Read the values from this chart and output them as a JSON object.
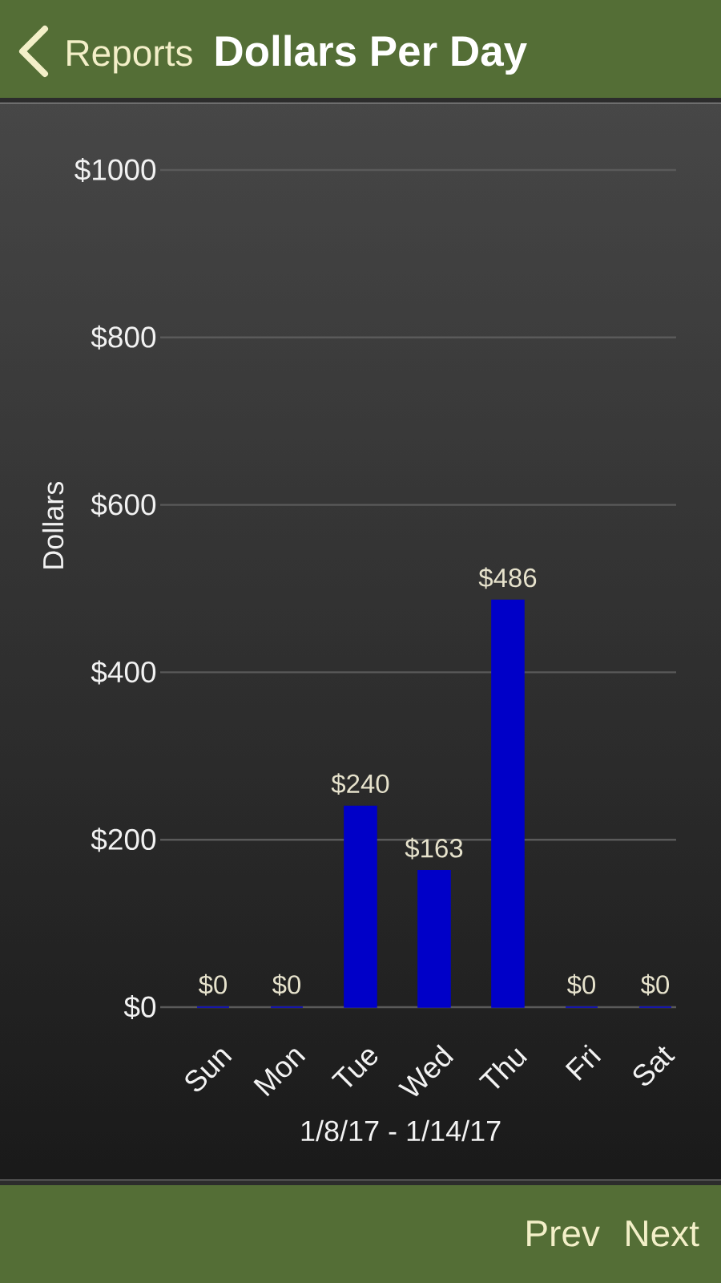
{
  "chart_data": {
    "type": "bar",
    "title": "Dollars Per Day",
    "xlabel": "1/8/17 - 1/14/17",
    "ylabel": "Dollars",
    "categories": [
      "Sun",
      "Mon",
      "Tue",
      "Wed",
      "Thu",
      "Fri",
      "Sat"
    ],
    "values": [
      0,
      0,
      240,
      163,
      486,
      0,
      0
    ],
    "value_labels": [
      "$0",
      "$0",
      "$240",
      "$163",
      "$486",
      "$0",
      "$0"
    ],
    "color": "#0000c8",
    "ylim": [
      0,
      1000
    ],
    "yticks": [
      {
        "value": 0,
        "label": "$0"
      },
      {
        "value": 200,
        "label": "$200"
      },
      {
        "value": 400,
        "label": "$400"
      },
      {
        "value": 600,
        "label": "$600"
      },
      {
        "value": 800,
        "label": "$800"
      },
      {
        "value": 1000,
        "label": "$1000"
      }
    ],
    "grid": "y",
    "annotations": [
      "Reports",
      "Prev",
      "Next"
    ]
  }
}
